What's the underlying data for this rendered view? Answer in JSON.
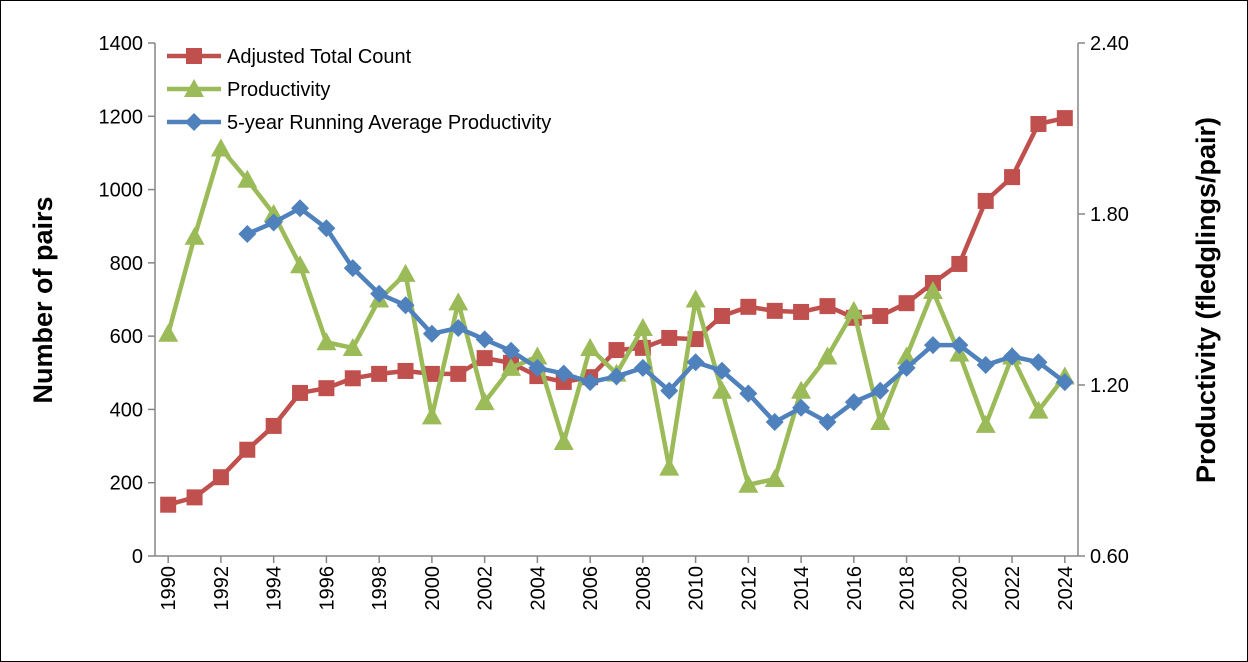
{
  "chart_data": {
    "type": "line",
    "ylabel": "Number of pairs",
    "y2label": "Productivity (fledglings/pair)",
    "x": [
      1990,
      1991,
      1992,
      1993,
      1994,
      1995,
      1996,
      1997,
      1998,
      1999,
      2000,
      2001,
      2002,
      2003,
      2004,
      2005,
      2006,
      2007,
      2008,
      2009,
      2010,
      2011,
      2012,
      2013,
      2014,
      2015,
      2016,
      2017,
      2018,
      2019,
      2020,
      2021,
      2022,
      2023,
      2024
    ],
    "xlim": [
      1989.5,
      2024.5
    ],
    "xticks": [
      1990,
      1992,
      1994,
      1996,
      1998,
      2000,
      2002,
      2004,
      2006,
      2008,
      2010,
      2012,
      2014,
      2016,
      2018,
      2020,
      2022,
      2024
    ],
    "ylim": [
      0,
      1400
    ],
    "yticks": [
      0,
      200,
      400,
      600,
      800,
      1000,
      1200,
      1400
    ],
    "y2lim": [
      0.6,
      2.4
    ],
    "y2ticks": [
      {
        "value": 0.6,
        "label": "0.60"
      },
      {
        "value": 1.2,
        "label": "1.20"
      },
      {
        "value": 1.8,
        "label": "1.80"
      },
      {
        "value": 2.4,
        "label": "2.40"
      }
    ],
    "legend": "upper left",
    "series": [
      {
        "name": "Adjusted Total Count",
        "color": "#c0504d",
        "marker": "square",
        "values": [
          140,
          160,
          215,
          290,
          355,
          445,
          458,
          485,
          497,
          505,
          497,
          497,
          540,
          527,
          491,
          475,
          488,
          562,
          568,
          595,
          592,
          655,
          680,
          669,
          666,
          682,
          650,
          655,
          690,
          745,
          797,
          969,
          1034,
          1179,
          1195
        ]
      },
      {
        "name": "Productivity",
        "color": "#9bbb59",
        "marker": "triangle",
        "axis": "y2",
        "values": [
          1.38,
          1.72,
          2.03,
          1.92,
          1.8,
          1.62,
          1.35,
          1.33,
          1.5,
          1.59,
          1.09,
          1.49,
          1.14,
          1.26,
          1.3,
          1.0,
          1.33,
          1.24,
          1.4,
          0.91,
          1.5,
          1.18,
          0.85,
          0.87,
          1.18,
          1.3,
          1.46,
          1.07,
          1.3,
          1.53,
          1.31,
          1.06,
          1.3,
          1.11,
          1.23
        ]
      },
      {
        "name": "5-year Running Average Productivity",
        "color": "#4f81bd",
        "marker": "diamond",
        "axis": "y2",
        "values": [
          null,
          null,
          null,
          1.73,
          1.77,
          1.82,
          1.75,
          1.61,
          1.52,
          1.48,
          1.38,
          1.4,
          1.36,
          1.32,
          1.26,
          1.24,
          1.21,
          1.23,
          1.26,
          1.18,
          1.28,
          1.25,
          1.17,
          1.07,
          1.12,
          1.07,
          1.14,
          1.18,
          1.26,
          1.34,
          1.34,
          1.27,
          1.3,
          1.28,
          1.21
        ]
      }
    ]
  }
}
